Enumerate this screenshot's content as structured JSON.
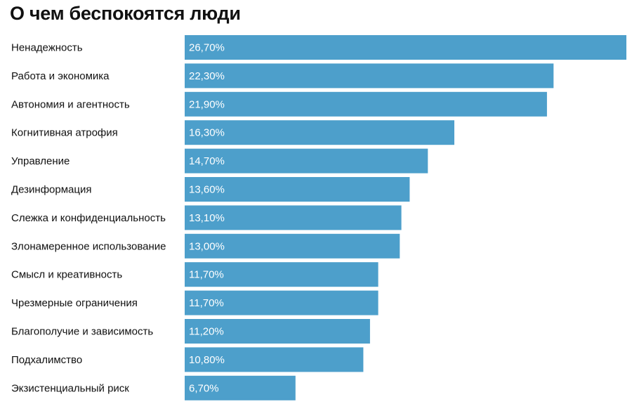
{
  "chart_data": {
    "type": "bar",
    "orientation": "horizontal",
    "title": "О чем беспокоятся люди",
    "categories": [
      "Ненадежность",
      "Работа и экономика",
      "Автономия и агентность",
      "Когнитивная атрофия",
      "Управление",
      "Дезинформация",
      "Слежка и конфиденциальность",
      "Злонамеренное использование",
      "Смысл и креативность",
      "Чрезмерные ограничения",
      "Благополучие и зависимость",
      "Подхалимство",
      "Экзистенциальный риск"
    ],
    "values": [
      26.7,
      22.3,
      21.9,
      16.3,
      14.7,
      13.6,
      13.1,
      13.0,
      11.7,
      11.7,
      11.2,
      10.8,
      6.7
    ],
    "value_labels": [
      "26,70%",
      "22,30%",
      "21,90%",
      "16,30%",
      "14,70%",
      "13,60%",
      "13,10%",
      "13,00%",
      "11,70%",
      "11,70%",
      "11,20%",
      "10,80%",
      "6,70%"
    ],
    "xlim": [
      0,
      26.7
    ],
    "grid": false,
    "bar_color": "#4d9fcb"
  }
}
